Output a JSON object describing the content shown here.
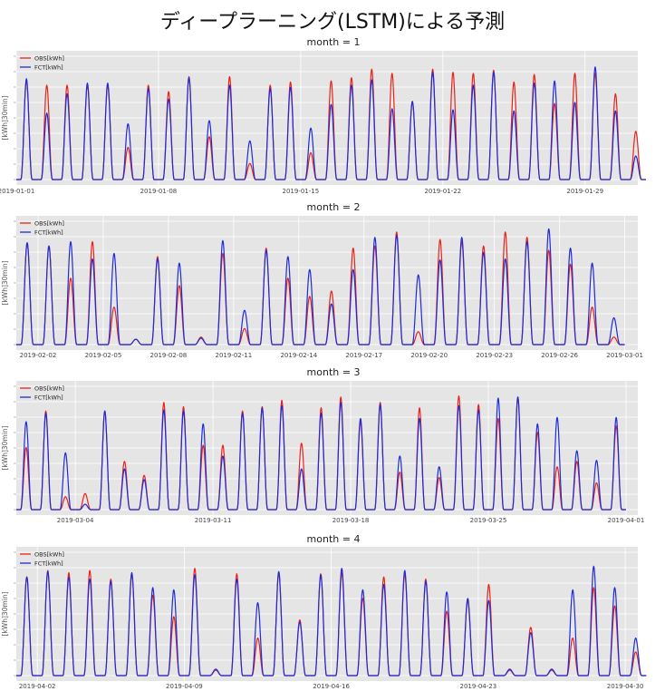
{
  "page": {
    "title": "ディープラーニング(LSTM)による予測"
  },
  "chart_data": [
    {
      "type": "line",
      "title": "month = 1",
      "ylabel": "[kWh]30min]",
      "legend": [
        "OBS[kWh]",
        "FCT[kWh]"
      ],
      "legend_position": "top-left",
      "grid": true,
      "xlim": [
        "2019-01-01",
        "2019-01-31"
      ],
      "xtick_labels": [
        "2019-01-01",
        "2019-01-08",
        "2019-01-15",
        "2019-01-22",
        "2019-01-29"
      ],
      "days": [
        "2019-01-01",
        "2019-01-02",
        "2019-01-03",
        "2019-01-04",
        "2019-01-05",
        "2019-01-06",
        "2019-01-07",
        "2019-01-08",
        "2019-01-09",
        "2019-01-10",
        "2019-01-11",
        "2019-01-12",
        "2019-01-13",
        "2019-01-14",
        "2019-01-15",
        "2019-01-16",
        "2019-01-17",
        "2019-01-18",
        "2019-01-19",
        "2019-01-20",
        "2019-01-21",
        "2019-01-22",
        "2019-01-23",
        "2019-01-24",
        "2019-01-25",
        "2019-01-26",
        "2019-01-27",
        "2019-01-28",
        "2019-01-29",
        "2019-01-30",
        "2019-01-31"
      ],
      "series": [
        {
          "name": "OBS[kWh]",
          "color": "#e8231a",
          "daily_peak": [
            0.92,
            0.88,
            0.88,
            0.88,
            0.88,
            0.3,
            0.88,
            0.82,
            0.96,
            0.4,
            0.96,
            0.15,
            0.88,
            0.91,
            0.25,
            0.92,
            0.95,
            1.03,
            0.99,
            0.72,
            1.03,
            1.0,
            0.99,
            1.02,
            0.91,
            0.98,
            0.71,
            0.99,
            0.99,
            0.8,
            0.45
          ]
        },
        {
          "name": "FCT[kWh]",
          "color": "#1f2bd8",
          "daily_peak": [
            0.94,
            0.62,
            0.8,
            0.9,
            0.9,
            0.52,
            0.85,
            0.75,
            0.95,
            0.55,
            0.88,
            0.36,
            0.85,
            0.86,
            0.48,
            0.7,
            0.88,
            0.93,
            0.66,
            0.73,
            1.0,
            0.65,
            0.88,
            1.0,
            0.64,
            0.9,
            0.92,
            0.72,
            1.05,
            0.64,
            0.22
          ]
        }
      ]
    },
    {
      "type": "line",
      "title": "month = 2",
      "ylabel": "[kWh]30min]",
      "legend": [
        "OBS[kWh]",
        "FCT[kWh]"
      ],
      "legend_position": "top-left",
      "grid": true,
      "xlim": [
        "2019-02-01",
        "2019-03-01"
      ],
      "xtick_labels": [
        "2019-02-02",
        "2019-02-05",
        "2019-02-08",
        "2019-02-11",
        "2019-02-14",
        "2019-02-17",
        "2019-02-20",
        "2019-02-23",
        "2019-02-26",
        "2019-03-01"
      ],
      "days": [
        "2019-02-01",
        "2019-02-02",
        "2019-02-03",
        "2019-02-04",
        "2019-02-05",
        "2019-02-06",
        "2019-02-07",
        "2019-02-08",
        "2019-02-09",
        "2019-02-10",
        "2019-02-11",
        "2019-02-12",
        "2019-02-13",
        "2019-02-14",
        "2019-02-15",
        "2019-02-16",
        "2019-02-17",
        "2019-02-18",
        "2019-02-19",
        "2019-02-20",
        "2019-02-21",
        "2019-02-22",
        "2019-02-23",
        "2019-02-24",
        "2019-02-25",
        "2019-02-26",
        "2019-02-27",
        "2019-02-28"
      ],
      "series": [
        {
          "name": "OBS[kWh]",
          "color": "#e8231a",
          "daily_peak": [
            0.95,
            0.92,
            0.62,
            0.96,
            0.35,
            0.05,
            0.82,
            0.55,
            0.07,
            0.85,
            0.15,
            0.9,
            0.62,
            0.45,
            0.5,
            0.9,
            0.92,
            1.05,
            0.12,
            0.98,
            0.96,
            0.92,
            1.05,
            1.0,
            0.88,
            0.75,
            0.35,
            0.07
          ]
        },
        {
          "name": "FCT[kWh]",
          "color": "#1f2bd8",
          "daily_peak": [
            0.95,
            0.92,
            0.96,
            0.8,
            0.85,
            0.05,
            0.8,
            0.76,
            0.06,
            0.97,
            0.32,
            0.88,
            0.82,
            0.7,
            0.38,
            0.7,
            1.0,
            1.02,
            0.65,
            0.79,
            1.0,
            0.86,
            0.8,
            0.96,
            1.08,
            0.9,
            0.76,
            0.25
          ]
        }
      ]
    },
    {
      "type": "line",
      "title": "month = 3",
      "ylabel": "[kWh]30min]",
      "legend": [
        "OBS[kWh]",
        "FCT[kWh]"
      ],
      "legend_position": "top-left",
      "grid": true,
      "xlim": [
        "2019-03-01",
        "2019-04-01"
      ],
      "xtick_labels": [
        "2019-03-04",
        "2019-03-11",
        "2019-03-18",
        "2019-03-25",
        "2019-04-01"
      ],
      "days": [
        "2019-03-01",
        "2019-03-02",
        "2019-03-03",
        "2019-03-04",
        "2019-03-05",
        "2019-03-06",
        "2019-03-07",
        "2019-03-08",
        "2019-03-09",
        "2019-03-10",
        "2019-03-11",
        "2019-03-12",
        "2019-03-13",
        "2019-03-14",
        "2019-03-15",
        "2019-03-16",
        "2019-03-17",
        "2019-03-18",
        "2019-03-19",
        "2019-03-20",
        "2019-03-21",
        "2019-03-22",
        "2019-03-23",
        "2019-03-24",
        "2019-03-25",
        "2019-03-26",
        "2019-03-27",
        "2019-03-28",
        "2019-03-29",
        "2019-03-30",
        "2019-03-31"
      ],
      "series": [
        {
          "name": "OBS[kWh]",
          "color": "#e8231a",
          "daily_peak": [
            0.58,
            0.92,
            0.12,
            0.15,
            0.92,
            0.45,
            0.32,
            1.0,
            0.96,
            0.6,
            0.6,
            0.92,
            0.96,
            1.02,
            0.62,
            0.95,
            1.05,
            0.82,
            1.0,
            0.35,
            0.95,
            0.3,
            1.06,
            0.98,
            0.85,
            1.05,
            0.72,
            0.4,
            0.45,
            0.25,
            0.78
          ]
        },
        {
          "name": "FCT[kWh]",
          "color": "#1f2bd8",
          "daily_peak": [
            0.82,
            0.9,
            0.53,
            0.05,
            0.92,
            0.38,
            0.28,
            0.93,
            0.92,
            0.8,
            0.5,
            0.9,
            0.95,
            0.97,
            0.38,
            0.9,
            1.0,
            0.85,
            0.98,
            0.5,
            0.85,
            0.4,
            0.97,
            0.93,
            1.04,
            1.05,
            0.8,
            0.86,
            0.55,
            0.46,
            0.86
          ]
        }
      ]
    },
    {
      "type": "line",
      "title": "month = 4",
      "ylabel": "[kWh]30min]",
      "legend": [
        "OBS[kWh]",
        "FCT[kWh]"
      ],
      "legend_position": "top-left",
      "grid": true,
      "xlim": [
        "2019-04-01",
        "2019-04-30"
      ],
      "xtick_labels": [
        "2019-04-02",
        "2019-04-09",
        "2019-04-16",
        "2019-04-23",
        "2019-04-30"
      ],
      "days": [
        "2019-04-01",
        "2019-04-02",
        "2019-04-03",
        "2019-04-04",
        "2019-04-05",
        "2019-04-06",
        "2019-04-07",
        "2019-04-08",
        "2019-04-09",
        "2019-04-10",
        "2019-04-11",
        "2019-04-12",
        "2019-04-13",
        "2019-04-14",
        "2019-04-15",
        "2019-04-16",
        "2019-04-17",
        "2019-04-18",
        "2019-04-19",
        "2019-04-20",
        "2019-04-21",
        "2019-04-22",
        "2019-04-23",
        "2019-04-24",
        "2019-04-25",
        "2019-04-26",
        "2019-04-27",
        "2019-04-28",
        "2019-04-29",
        "2019-04-30"
      ],
      "series": [
        {
          "name": "OBS[kWh]",
          "color": "#e8231a",
          "daily_peak": [
            0.92,
            0.98,
            0.96,
            0.98,
            0.9,
            0.95,
            0.75,
            0.55,
            1.0,
            0.05,
            0.95,
            0.35,
            0.95,
            0.52,
            0.95,
            0.96,
            0.72,
            0.92,
            0.95,
            0.9,
            0.6,
            0.7,
            0.85,
            0.05,
            0.45,
            0.05,
            0.35,
            0.82,
            0.65,
            0.22
          ]
        },
        {
          "name": "FCT[kWh]",
          "color": "#1f2bd8",
          "daily_peak": [
            0.92,
            0.97,
            0.92,
            0.9,
            0.88,
            0.96,
            0.82,
            0.8,
            0.94,
            0.06,
            0.9,
            0.68,
            0.97,
            0.5,
            0.94,
            1.0,
            0.8,
            0.85,
            0.98,
            0.88,
            0.78,
            0.72,
            0.7,
            0.06,
            0.4,
            0.06,
            0.8,
            1.02,
            0.82,
            0.35
          ]
        }
      ]
    }
  ]
}
